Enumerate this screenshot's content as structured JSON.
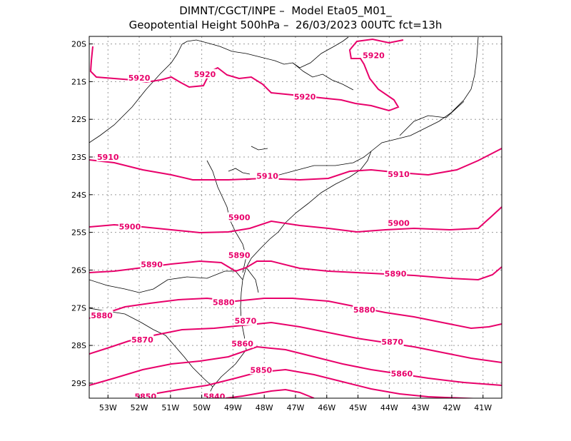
{
  "header": {
    "line1": "DIMNT/CGCT/INPE –  Model Eta05_M01_",
    "line2": "Geopotential Height 500hPa –  26/03/2023 00UTC fct=13h"
  },
  "map": {
    "lon_range": [
      -53.6,
      -40.4
    ],
    "lat_range": [
      -29.4,
      -19.8
    ],
    "lon_ticks": [
      "53W",
      "52W",
      "51W",
      "50W",
      "49W",
      "48W",
      "47W",
      "46W",
      "45W",
      "44W",
      "43W",
      "42W",
      "41W"
    ],
    "lat_ticks": [
      "20S",
      "21S",
      "22S",
      "23S",
      "24S",
      "25S",
      "26S",
      "27S",
      "28S",
      "29S"
    ],
    "contour_color": "#e8006a",
    "border_color": "#000000",
    "grid": true
  },
  "contours": [
    {
      "level": 5920,
      "labels": [
        {
          "text": "5920",
          "lon": -52.0,
          "lat": -20.9
        },
        {
          "text": "5920",
          "lon": -49.9,
          "lat": -20.8
        },
        {
          "text": "5920",
          "lon": -46.7,
          "lat": -21.4
        },
        {
          "text": "5920",
          "lon": -44.5,
          "lat": -20.3
        }
      ]
    },
    {
      "level": 5910,
      "labels": [
        {
          "text": "5910",
          "lon": -53.0,
          "lat": -23.0
        },
        {
          "text": "5910",
          "lon": -47.9,
          "lat": -23.5
        },
        {
          "text": "5910",
          "lon": -43.7,
          "lat": -23.45
        }
      ]
    },
    {
      "level": 5900,
      "labels": [
        {
          "text": "5900",
          "lon": -52.3,
          "lat": -24.85
        },
        {
          "text": "5900",
          "lon": -48.8,
          "lat": -24.6
        },
        {
          "text": "5900",
          "lon": -43.7,
          "lat": -24.75
        }
      ]
    },
    {
      "level": 5890,
      "labels": [
        {
          "text": "5890",
          "lon": -51.6,
          "lat": -25.85
        },
        {
          "text": "5890",
          "lon": -48.8,
          "lat": -25.6
        },
        {
          "text": "5890",
          "lon": -43.8,
          "lat": -26.1
        }
      ]
    },
    {
      "level": 5880,
      "labels": [
        {
          "text": "5880",
          "lon": -53.2,
          "lat": -27.2
        },
        {
          "text": "5880",
          "lon": -49.3,
          "lat": -26.85
        },
        {
          "text": "5880",
          "lon": -44.8,
          "lat": -27.05
        }
      ]
    },
    {
      "level": 5870,
      "labels": [
        {
          "text": "5870",
          "lon": -51.9,
          "lat": -27.85
        },
        {
          "text": "5870",
          "lon": -48.6,
          "lat": -27.35
        },
        {
          "text": "5870",
          "lon": -43.9,
          "lat": -27.9
        }
      ]
    },
    {
      "level": 5860,
      "labels": [
        {
          "text": "5860",
          "lon": -48.7,
          "lat": -27.95
        },
        {
          "text": "5860",
          "lon": -43.6,
          "lat": -28.75
        }
      ]
    },
    {
      "level": 5850,
      "labels": [
        {
          "text": "5850",
          "lon": -51.8,
          "lat": -29.35
        },
        {
          "text": "5850",
          "lon": -48.1,
          "lat": -28.65
        }
      ]
    },
    {
      "level": 5840,
      "labels": [
        {
          "text": "5840",
          "lon": -49.6,
          "lat": -29.35
        }
      ]
    }
  ]
}
